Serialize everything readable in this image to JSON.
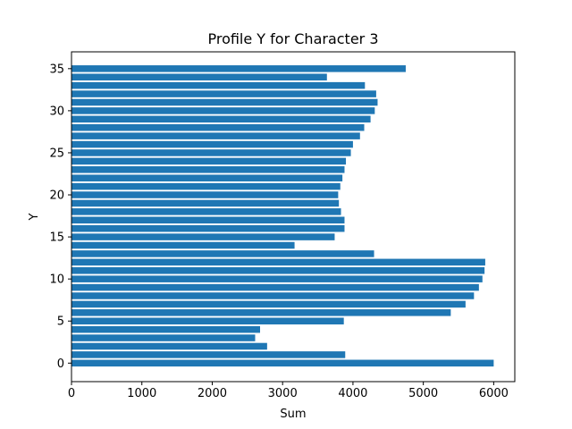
{
  "chart_data": {
    "type": "bar",
    "orientation": "horizontal",
    "title": "Profile Y for Character 3",
    "xlabel": "Sum",
    "ylabel": "Y",
    "xlim": [
      0,
      6300
    ],
    "ylim": [
      -2.2,
      37.0
    ],
    "xticks": [
      0,
      1000,
      2000,
      3000,
      4000,
      5000,
      6000
    ],
    "yticks": [
      0,
      5,
      10,
      15,
      20,
      25,
      30,
      35
    ],
    "grid": false,
    "bar_color": "#1f77b4",
    "y": [
      0,
      1,
      2,
      3,
      4,
      5,
      6,
      7,
      8,
      9,
      10,
      11,
      12,
      13,
      14,
      15,
      16,
      17,
      18,
      19,
      20,
      21,
      22,
      23,
      24,
      25,
      26,
      27,
      28,
      29,
      30,
      31,
      32,
      33,
      34,
      35
    ],
    "values": [
      6000,
      3890,
      2780,
      2610,
      2680,
      3870,
      5390,
      5600,
      5720,
      5790,
      5840,
      5870,
      5880,
      4300,
      3170,
      3740,
      3880,
      3880,
      3830,
      3800,
      3790,
      3820,
      3850,
      3880,
      3900,
      3970,
      4000,
      4100,
      4160,
      4250,
      4310,
      4350,
      4330,
      4170,
      3630,
      4750
    ]
  }
}
